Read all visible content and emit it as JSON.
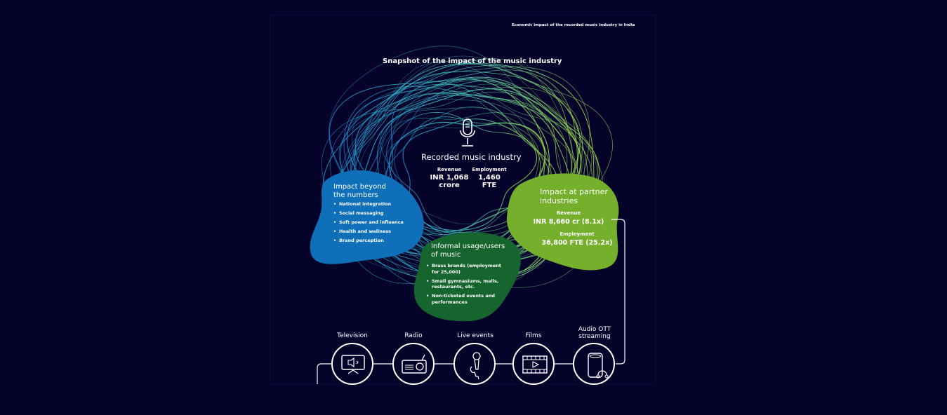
{
  "header_note": "Economic impact of the recorded music industry in India",
  "title": "Snapshot of the impact of the music industry",
  "center": {
    "title": "Recorded music industry",
    "revenue_label": "Revenue",
    "revenue_value_line1": "INR 1,068",
    "revenue_value_line2": "crore",
    "employment_label": "Employment",
    "employment_value_line1": "1,460",
    "employment_value_line2": "FTE",
    "icon": "microphone-icon"
  },
  "beyond": {
    "title_line1": "Impact beyond",
    "title_line2": "the numbers",
    "color": "#0f6fb8",
    "items": [
      "National integration",
      "Social messaging",
      "Soft power and influence",
      "Health and wellness",
      "Brand perception"
    ]
  },
  "informal": {
    "title_line1": "Informal usage/users",
    "title_line2": "of music",
    "color": "#16652e",
    "items": [
      "Brass brands (employment for 25,000)",
      "Small gymnasiums, malls, restaurants, etc.",
      "Non-ticketed events and performances"
    ]
  },
  "partner": {
    "title_line1": "Impact at partner",
    "title_line2": "industries",
    "color": "#75b02c",
    "revenue_label": "Revenue",
    "revenue_value": "INR 8,660 cr (8.1x)",
    "employment_label": "Employment",
    "employment_value": "36,800 FTE (25.2x)"
  },
  "industries": [
    {
      "label": "Television",
      "icon": "television-icon"
    },
    {
      "label": "Radio",
      "icon": "radio-icon"
    },
    {
      "label": "Live events",
      "icon": "live-microphone-icon"
    },
    {
      "label": "Films",
      "icon": "film-strip-icon"
    },
    {
      "label": "Audio OTT streaming",
      "icon": "smart-speaker-icon"
    }
  ],
  "colors": {
    "background": "#05032a",
    "swirl_blue": "#2fa3d8",
    "swirl_green": "#8fd14f"
  }
}
